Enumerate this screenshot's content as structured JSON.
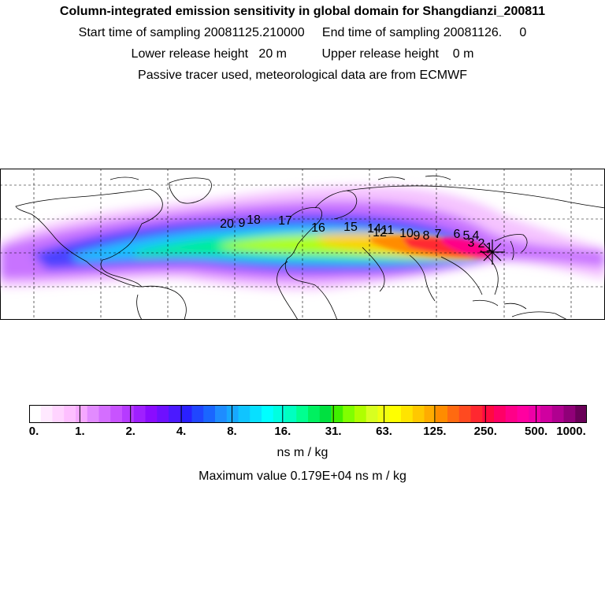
{
  "header": {
    "title": "Column-integrated emission sensitivity in global domain for Shangdianzi_200811",
    "line1": "Start time of sampling 20081125.210000     End time of sampling 20081126.     0",
    "line2": "Lower release height   20 m          Upper release height    0 m",
    "line3": "Passive tracer used, meteorological data are from ECMWF"
  },
  "map": {
    "track_labels": [
      "20",
      "9",
      "18",
      "17",
      "16",
      "15",
      "14",
      "12",
      "11",
      "10",
      "9",
      "8",
      "7",
      "6",
      "5",
      "4",
      "3",
      "2",
      "1"
    ],
    "release_marker": "star-icon"
  },
  "colorbar": {
    "colors": [
      "#ffffff",
      "#ffe9ff",
      "#ffd4ff",
      "#fdbfff",
      "#f5a8ff",
      "#e28bff",
      "#d46eff",
      "#c853ff",
      "#b63bff",
      "#9f20ff",
      "#8a0cff",
      "#6e10ff",
      "#4b1aff",
      "#2a20ff",
      "#2046ff",
      "#1a66ff",
      "#1e8cff",
      "#18a8ff",
      "#10c4ff",
      "#08e0ff",
      "#00ffff",
      "#00ffe0",
      "#00ffc0",
      "#00ff90",
      "#00f060",
      "#00e040",
      "#40f000",
      "#80ff00",
      "#b0ff00",
      "#d8ff20",
      "#f0ff10",
      "#ffff00",
      "#ffe400",
      "#ffc800",
      "#ffac00",
      "#ff8c00",
      "#ff6a10",
      "#ff4a20",
      "#ff2830",
      "#ff0a40",
      "#ff0066",
      "#ff0088",
      "#ff00a0",
      "#ee00a8",
      "#d000a0",
      "#b00090",
      "#900078",
      "#6a0058"
    ],
    "tick_labels": [
      "0.",
      "1.",
      "2.",
      "4.",
      "8.",
      "16.",
      "31.",
      "63.",
      "125.",
      "250.",
      "500.",
      "1000."
    ],
    "unit": "ns m / kg"
  },
  "footer": {
    "max_value": "Maximum value  0.179E+04 ns m / kg"
  }
}
